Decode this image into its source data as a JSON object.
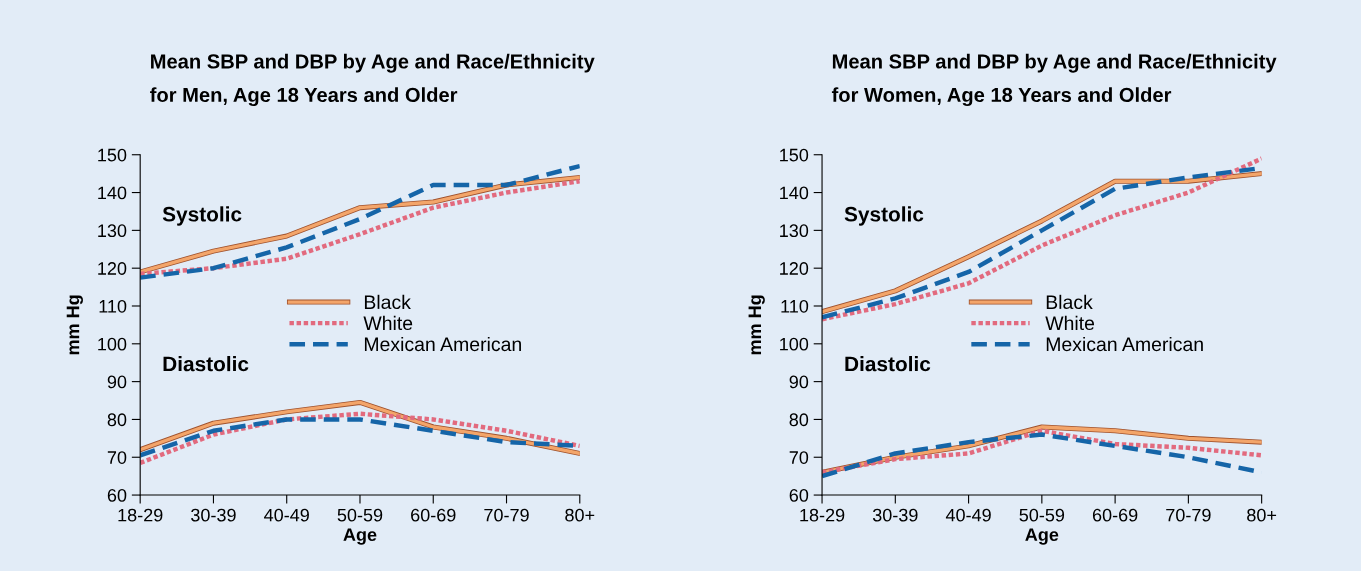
{
  "chart_data": [
    {
      "type": "line",
      "title": "Mean SBP and DBP by Age and Race/Ethnicity\nfor Men, Age 18 Years and Older",
      "xlabel": "Age",
      "ylabel": "mm Hg",
      "categories": [
        "18-29",
        "30-39",
        "40-49",
        "50-59",
        "60-69",
        "70-79",
        "80+"
      ],
      "ylim": [
        60,
        150
      ],
      "yticks": [
        60,
        70,
        80,
        90,
        100,
        110,
        120,
        130,
        140,
        150
      ],
      "grid": false,
      "legend": "right",
      "marker": "none",
      "annotations": [
        "Systolic",
        "Diastolic"
      ],
      "series": [
        {
          "name": "Black",
          "color": "#f3a56a",
          "line_style": "solid",
          "values": [
            119,
            124.5,
            128.5,
            136,
            137.5,
            142,
            144
          ]
        },
        {
          "name": "White",
          "color": "#e26a7e",
          "line_style": "dotted",
          "values": [
            118.5,
            120,
            122.5,
            129,
            136,
            140,
            143
          ]
        },
        {
          "name": "Mexican American",
          "color": "#1565a8",
          "line_style": "dashed",
          "values": [
            117.5,
            120,
            125.5,
            133,
            142,
            142,
            147
          ]
        },
        {
          "color": "#f3a56a",
          "line_style": "solid",
          "values": [
            72,
            79,
            82,
            84.5,
            78,
            75,
            71
          ]
        },
        {
          "color": "#e26a7e",
          "line_style": "dotted",
          "values": [
            68.5,
            76,
            80,
            81.5,
            80,
            77,
            73
          ]
        },
        {
          "color": "#1565a8",
          "line_style": "dashed",
          "values": [
            70.5,
            77,
            80,
            80,
            77,
            74,
            73
          ]
        }
      ]
    },
    {
      "type": "line",
      "title": "Mean SBP and DBP by Age and Race/Ethnicity\nfor Women, Age 18 Years and Older",
      "xlabel": "Age",
      "ylabel": "mm Hg",
      "categories": [
        "18-29",
        "30-39",
        "40-49",
        "50-59",
        "60-69",
        "70-79",
        "80+"
      ],
      "ylim": [
        60,
        150
      ],
      "yticks": [
        60,
        70,
        80,
        90,
        100,
        110,
        120,
        130,
        140,
        150
      ],
      "grid": false,
      "legend": "right",
      "marker": "none",
      "annotations": [
        "Systolic",
        "Diastolic"
      ],
      "series": [
        {
          "name": "Black",
          "color": "#f3a56a",
          "line_style": "solid",
          "values": [
            108.5,
            114,
            123,
            132.5,
            143,
            143,
            145
          ]
        },
        {
          "name": "White",
          "color": "#e26a7e",
          "line_style": "dotted",
          "values": [
            106.5,
            110.5,
            116,
            126,
            134,
            140,
            149
          ]
        },
        {
          "name": "Mexican American",
          "color": "#1565a8",
          "line_style": "dashed",
          "values": [
            107,
            112,
            119,
            130,
            141,
            144,
            146.5
          ]
        },
        {
          "color": "#f3a56a",
          "line_style": "solid",
          "values": [
            66,
            70,
            73,
            78,
            77,
            75,
            74
          ]
        },
        {
          "color": "#e26a7e",
          "line_style": "dotted",
          "values": [
            66,
            69.5,
            71,
            77,
            73.5,
            72.5,
            70.5
          ]
        },
        {
          "color": "#1565a8",
          "line_style": "dashed",
          "values": [
            65,
            71,
            74,
            76,
            73,
            70,
            66
          ]
        }
      ]
    }
  ]
}
